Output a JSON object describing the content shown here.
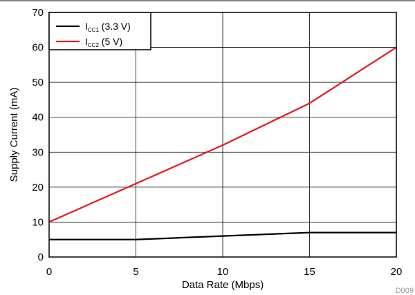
{
  "chart_data": {
    "type": "line",
    "xlabel": "Data Rate (Mbps)",
    "ylabel": "Supply Current (mA)",
    "xlim": [
      0,
      20
    ],
    "ylim": [
      0,
      70
    ],
    "x_ticks": [
      0,
      5,
      10,
      15,
      20
    ],
    "y_ticks": [
      0,
      10,
      20,
      30,
      40,
      50,
      60,
      70
    ],
    "grid": true,
    "legend_position": "top-left",
    "series": [
      {
        "name": "ICC1 (3.3 V)",
        "name_main": "I",
        "name_sub": "CC1",
        "name_rest": " (3.3 V)",
        "color": "#000000",
        "x": [
          0,
          5,
          10,
          15,
          20
        ],
        "values": [
          5,
          5,
          6,
          7,
          7
        ]
      },
      {
        "name": "ICC2 (5 V)",
        "name_main": "I",
        "name_sub": "CC2",
        "name_rest": " (5 V)",
        "color": "#e8161b",
        "x": [
          0,
          5,
          10,
          15,
          20
        ],
        "values": [
          10,
          21,
          32,
          44,
          60
        ]
      }
    ],
    "figure_id": "D009"
  }
}
